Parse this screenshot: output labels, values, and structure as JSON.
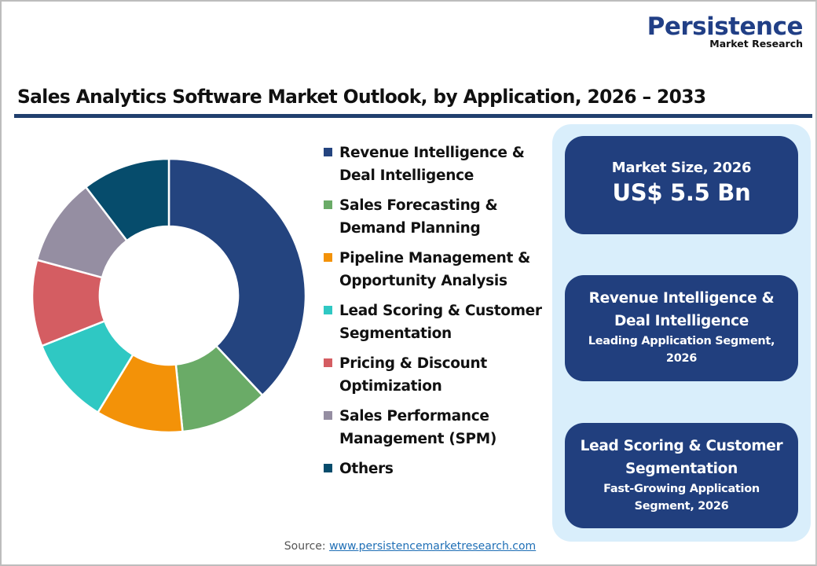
{
  "logo": {
    "main": "Persistence",
    "sub": "Market Research"
  },
  "title": "Sales Analytics Software Market Outlook, by Application, 2026 – 2033",
  "legend": [
    {
      "label": "Revenue Intelligence & Deal Intelligence",
      "line1": "Revenue Intelligence &",
      "line2": "Deal Intelligence",
      "color": "#24447f"
    },
    {
      "label": "Sales Forecasting & Demand Planning",
      "line1": "Sales Forecasting &",
      "line2": "Demand Planning",
      "color": "#6aab67"
    },
    {
      "label": "Pipeline Management & Opportunity Analysis",
      "line1": "Pipeline Management &",
      "line2": "Opportunity Analysis",
      "color": "#f39208"
    },
    {
      "label": "Lead Scoring & Customer Segmentation",
      "line1": "Lead Scoring & Customer",
      "line2": "Segmentation",
      "color": "#2fc8c3"
    },
    {
      "label": "Pricing & Discount Optimization",
      "line1": "Pricing & Discount",
      "line2": "Optimization",
      "color": "#d45d62"
    },
    {
      "label": "Sales Performance Management (SPM)",
      "line1": "Sales Performance",
      "line2": "Management (SPM)",
      "color": "#958ea2"
    },
    {
      "label": "Others",
      "line1": "Others",
      "line2": "",
      "color": "#064c6c"
    }
  ],
  "cards": {
    "market_size": {
      "label": "Market Size, 2026",
      "value": "US$ 5.5 Bn"
    },
    "leading": {
      "line1": "Revenue Intelligence &",
      "line2": "Deal Intelligence",
      "sub1": "Leading Application Segment,",
      "sub2": "2026"
    },
    "fastest": {
      "line1": "Lead Scoring & Customer",
      "line2": "Segmentation",
      "sub1": "Fast-Growing Application",
      "sub2": "Segment, 2026"
    }
  },
  "source": {
    "label": "Source:",
    "link": "www.persistencemarketresearch.com"
  },
  "colors": {
    "accent": "#213f7e",
    "panel_bg": "#d9eefb",
    "title_rule": "#213f6e"
  },
  "chart_data": {
    "type": "pie",
    "subtype": "donut",
    "title": "Sales Analytics Software Market Outlook, by Application, 2026 – 2033",
    "categories": [
      "Revenue Intelligence & Deal Intelligence",
      "Sales Forecasting & Demand Planning",
      "Pipeline Management & Opportunity Analysis",
      "Lead Scoring & Customer Segmentation",
      "Pricing & Discount Optimization",
      "Sales Performance Management (SPM)",
      "Others"
    ],
    "values": [
      38.0,
      10.4,
      10.3,
      10.3,
      10.2,
      10.4,
      10.4
    ],
    "unit": "% share (estimated from slice angles)",
    "colors": [
      "#24447f",
      "#6aab67",
      "#f39208",
      "#2fc8c3",
      "#d45d62",
      "#958ea2",
      "#064c6c"
    ],
    "start_angle": "12 o'clock, clockwise",
    "legend_position": "right",
    "data_labels": false
  }
}
